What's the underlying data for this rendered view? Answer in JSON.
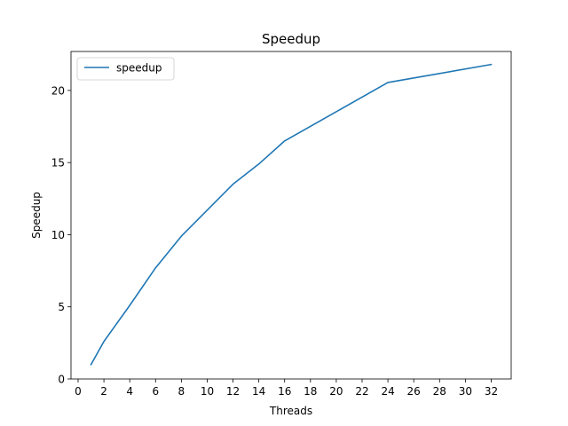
{
  "chart_data": {
    "type": "line",
    "title": "Speedup",
    "xlabel": "Threads",
    "ylabel": "Speedup",
    "xlim": [
      -0.55,
      33.55
    ],
    "ylim": [
      0,
      22.7
    ],
    "xticks": [
      0,
      2,
      4,
      6,
      8,
      10,
      12,
      14,
      16,
      18,
      20,
      22,
      24,
      26,
      28,
      30,
      32
    ],
    "yticks": [
      0,
      5,
      10,
      15,
      20
    ],
    "grid": false,
    "legend_position": "top-left",
    "series": [
      {
        "name": "speedup",
        "color": "#1f77b4",
        "x": [
          1,
          2,
          4,
          6,
          8,
          12,
          14,
          16,
          24,
          32
        ],
        "y": [
          1.0,
          2.6,
          5.1,
          7.7,
          9.9,
          13.5,
          14.9,
          16.5,
          20.55,
          21.8
        ]
      }
    ]
  }
}
